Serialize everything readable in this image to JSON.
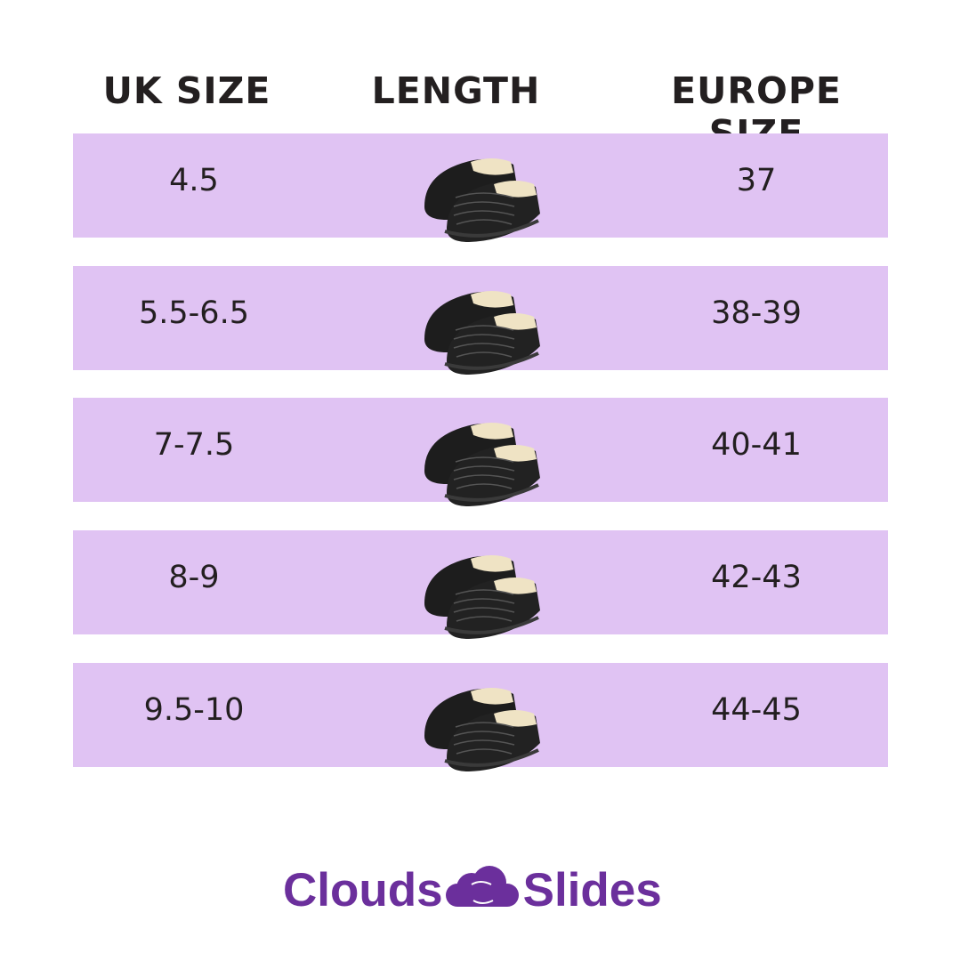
{
  "colors": {
    "row_background": "#e0c3f3",
    "text": "#231f20",
    "brand": "#6b2f9c"
  },
  "headers": {
    "uk_size": "UK SIZE",
    "length": "LENGTH",
    "europe_size": "EUROPE SIZE"
  },
  "rows": [
    {
      "uk": "4.5",
      "eu": "37",
      "image": "black-fleece-lined-slippers"
    },
    {
      "uk": "5.5-6.5",
      "eu": "38-39",
      "image": "black-fleece-lined-slippers"
    },
    {
      "uk": "7-7.5",
      "eu": "40-41",
      "image": "black-fleece-lined-slippers"
    },
    {
      "uk": "8-9",
      "eu": "42-43",
      "image": "black-fleece-lined-slippers"
    },
    {
      "uk": "9.5-10",
      "eu": "44-45",
      "image": "black-fleece-lined-slippers"
    }
  ],
  "logo": {
    "left": "Clouds",
    "right": "Slides",
    "icon": "cloud-feet-icon"
  }
}
